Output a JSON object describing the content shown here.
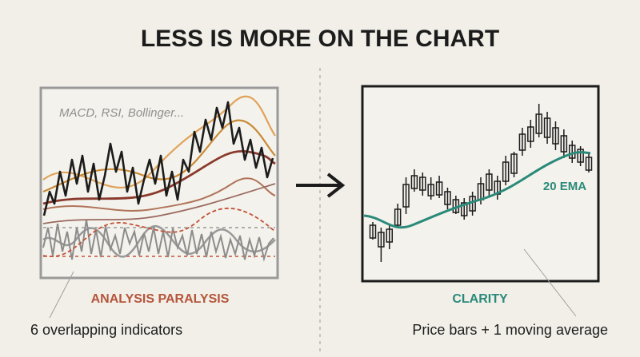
{
  "title": "LESS IS MORE ON THE CHART",
  "left_panel": {
    "annotation": "MACD, RSI, Bollinger...",
    "label": "ANALYSIS PARALYSIS",
    "caption": "6 overlapping indicators"
  },
  "right_panel": {
    "line_label": "20 EMA",
    "label": "CLARITY",
    "caption": "Price bars + 1 moving average"
  }
}
